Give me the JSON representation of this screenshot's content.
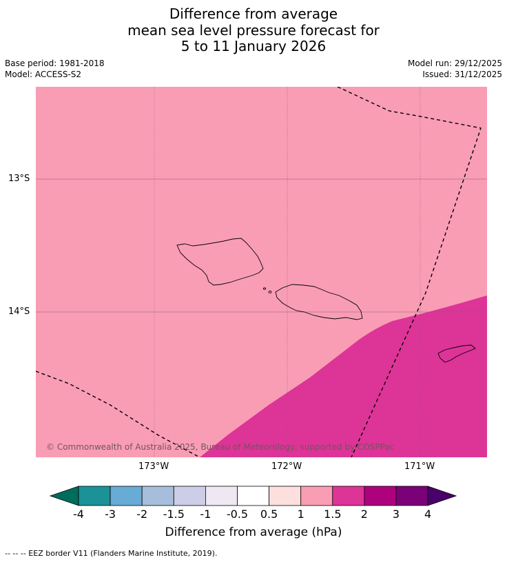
{
  "title": {
    "line1": "Difference from average",
    "line2": "mean sea level pressure forecast for",
    "line3": "5 to 11 January 2026"
  },
  "meta": {
    "base_period": "Base period: 1981-2018",
    "model": "Model: ACCESS-S2",
    "model_run": "Model run: 29/12/2025",
    "issued": "Issued: 31/12/2025"
  },
  "map": {
    "region": "Samoa",
    "lat_ticks": [
      "13°S",
      "14°S"
    ],
    "lon_ticks": [
      "173°W",
      "172°W",
      "171°W"
    ],
    "fill_colors": {
      "pink_1_to_1_5": "#f99db4",
      "magenta_1_5_to_2": "#dd3497"
    },
    "copyright": "© Commonwealth of Australia 2025, Bureau of Meteorology, supported by COSPPac"
  },
  "colorbar": {
    "label": "Difference from average (hPa)",
    "ticks": [
      "-4",
      "-3",
      "-2",
      "-1.5",
      "-1",
      "-0.5",
      "0.5",
      "1",
      "1.5",
      "2",
      "3",
      "4"
    ],
    "colors": [
      "#006d5c",
      "#1b9198",
      "#67abd6",
      "#a6bddb",
      "#cccde6",
      "#efe7f2",
      "#ffffff",
      "#fde0dd",
      "#f99db4",
      "#dd3497",
      "#ae017e",
      "#7a0177",
      "#49006a"
    ]
  },
  "footnote": "--  --  -- EEZ border V11 (Flanders Marine Institute, 2019)."
}
